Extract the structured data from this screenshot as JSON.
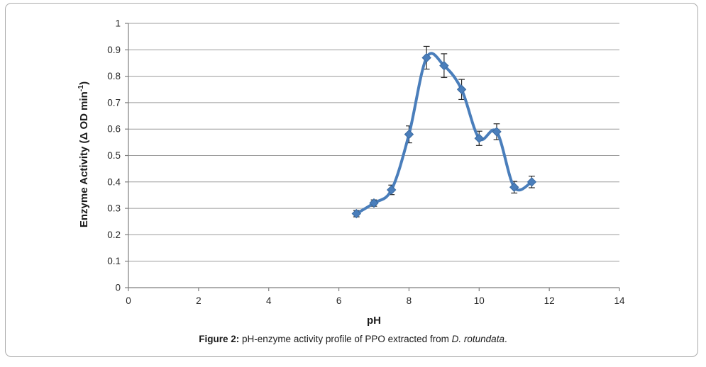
{
  "figure": {
    "caption": {
      "label": "Figure 2:",
      "body": " pH-enzyme activity profile of PPO extracted from ",
      "species": "D. rotundata",
      "suffix": "."
    }
  },
  "chart_data": {
    "type": "line",
    "subtype": "smooth-line-with-diamond-markers-and-error-bars",
    "title": "",
    "xlabel": "pH",
    "ylabel": "Enzyme Activity (Δ OD min⁻¹)",
    "ylabel_parts": {
      "main": "Enzyme Activity (Δ OD min",
      "sup": "-1",
      "end": ")"
    },
    "xlim": [
      0,
      14
    ],
    "ylim": [
      0,
      1
    ],
    "xticks": [
      0,
      2,
      4,
      6,
      8,
      10,
      12,
      14
    ],
    "xtick_labels": [
      "0",
      "2",
      "4",
      "6",
      "8",
      "10",
      "12",
      "14"
    ],
    "yticks": [
      0,
      0.1,
      0.2,
      0.3,
      0.4,
      0.5,
      0.6,
      0.7,
      0.8,
      0.9,
      1
    ],
    "ytick_labels": [
      "0",
      "0.1",
      "0.2",
      "0.3",
      "0.4",
      "0.5",
      "0.6",
      "0.7",
      "0.8",
      "0.9",
      "1"
    ],
    "grid": "horizontal",
    "legend": "none",
    "marker": "diamond",
    "series": [
      {
        "x": [
          6.5,
          7,
          7.5,
          8,
          8.5,
          9,
          9.5,
          10,
          10.5,
          11,
          11.5
        ],
        "y": [
          0.28,
          0.32,
          0.37,
          0.58,
          0.87,
          0.84,
          0.75,
          0.565,
          0.59,
          0.38,
          0.4
        ],
        "yerr": [
          0.012,
          0.012,
          0.018,
          0.032,
          0.043,
          0.045,
          0.038,
          0.027,
          0.03,
          0.022,
          0.022
        ]
      }
    ],
    "colors": {
      "line": "#4a7ebb",
      "marker": "#4a7ebb",
      "marker_edge": "#3a6aa1",
      "grid": "#9c9c9c",
      "axis": "#7f7f7f",
      "error_bar": "#262626",
      "tick_text": "#262626",
      "label_text": "#1a1a1a"
    }
  }
}
